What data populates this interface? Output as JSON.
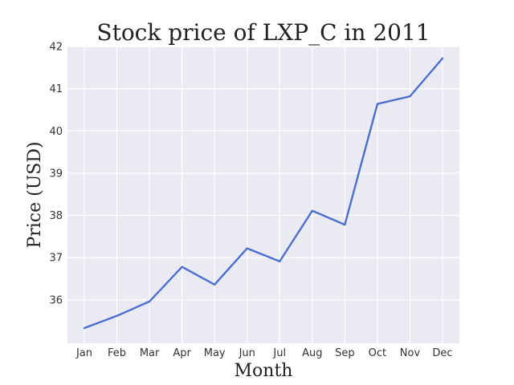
{
  "chart_data": {
    "type": "line",
    "title": "Stock price of LXP_C in 2011",
    "xlabel": "Month",
    "ylabel": "Price (USD)",
    "categories": [
      "Jan",
      "Feb",
      "Mar",
      "Apr",
      "May",
      "Jun",
      "Jul",
      "Aug",
      "Sep",
      "Oct",
      "Nov",
      "Dec"
    ],
    "series": [
      {
        "values": [
          35.33,
          35.62,
          35.96,
          36.78,
          36.36,
          37.22,
          36.91,
          38.11,
          37.78,
          40.64,
          40.82,
          41.72
        ]
      }
    ],
    "ylim": [
      34.97,
      42.0
    ],
    "yticks": [
      36,
      37,
      38,
      39,
      40,
      41,
      42
    ],
    "grid": true,
    "legend": "none"
  },
  "colors": {
    "plot_background": "#eaeaf2",
    "grid": "#ffffff",
    "line": "#4c6fcf"
  }
}
